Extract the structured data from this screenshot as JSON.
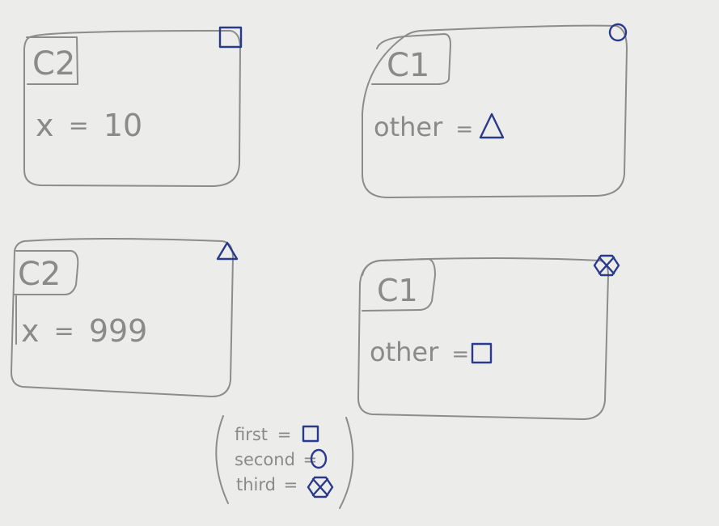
{
  "boxes": [
    {
      "class_label": "C2",
      "field": "x",
      "eq": "=",
      "value": "10",
      "marker": "square"
    },
    {
      "class_label": "C1",
      "field": "other",
      "eq": "=",
      "marker": "circle",
      "value_symbol": "triangle"
    },
    {
      "class_label": "C2",
      "field": "x",
      "eq": "=",
      "value": "999",
      "marker": "triangle"
    },
    {
      "class_label": "C1",
      "field": "other",
      "eq": "=",
      "marker": "hexagon-cross",
      "value_symbol": "square"
    }
  ],
  "legend": {
    "entries": [
      {
        "name": "first",
        "eq": "=",
        "symbol": "square"
      },
      {
        "name": "second",
        "eq": "=",
        "symbol": "circle"
      },
      {
        "name": "third",
        "eq": "=",
        "symbol": "hexagon-cross"
      }
    ]
  },
  "colors": {
    "pencil": "#8c8c8c",
    "ink": "#2a3a8a",
    "paper": "#ececea"
  }
}
